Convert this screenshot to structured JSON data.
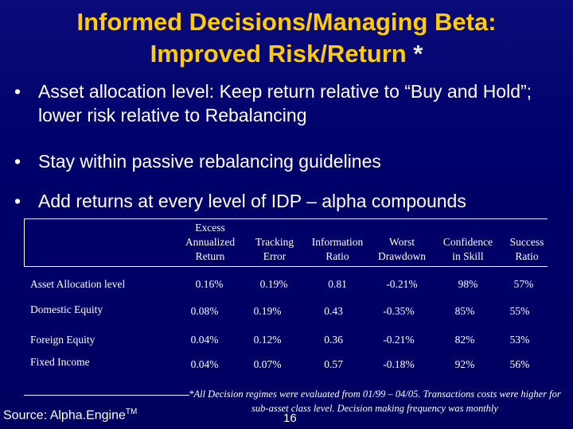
{
  "title": {
    "line1": "Informed Decisions/Managing Beta:",
    "line2": "Improved Risk/Return",
    "star": "*"
  },
  "bullets": [
    {
      "marker": "•",
      "text": "Asset allocation level: Keep return relative to “Buy and Hold”; lower risk relative to Rebalancing"
    },
    {
      "marker": "•",
      "text": "Stay within passive rebalancing guidelines"
    },
    {
      "marker": "•",
      "text": "Add returns at every level of IDP – alpha compounds"
    }
  ],
  "table": {
    "headers": [
      [
        "Excess",
        "Annualized",
        "Return"
      ],
      [
        "Tracking",
        "Error"
      ],
      [
        "Information",
        "Ratio"
      ],
      [
        "Worst",
        "Drawdown"
      ],
      [
        "Confidence",
        "in Skill"
      ],
      [
        "Success",
        "Ratio"
      ]
    ],
    "rows": [
      {
        "label": "Asset Allocation level",
        "values": [
          "0.16%",
          "0.19%",
          "0.81",
          "-0.21%",
          "98%",
          "57%"
        ]
      },
      {
        "label": "Domestic Equity",
        "values": [
          "0.08%",
          "0.19%",
          "0.43",
          "-0.35%",
          "85%",
          "55%"
        ]
      },
      {
        "label": "Foreign Equity",
        "values": [
          "0.04%",
          "0.12%",
          "0.36",
          "-0.21%",
          "82%",
          "53%"
        ]
      },
      {
        "label": "Fixed Income",
        "values": [
          "0.04%",
          "0.07%",
          "0.57",
          "-0.18%",
          "92%",
          "56%"
        ]
      }
    ]
  },
  "footnote": "*All Decision regimes were evaluated from 01/99 – 04/05. Transactions costs were higher for sub-asset class level. Decision making frequency was monthly",
  "source": {
    "text": "Source: Alpha.Engine",
    "sup": "TM"
  },
  "page_number": "16"
}
